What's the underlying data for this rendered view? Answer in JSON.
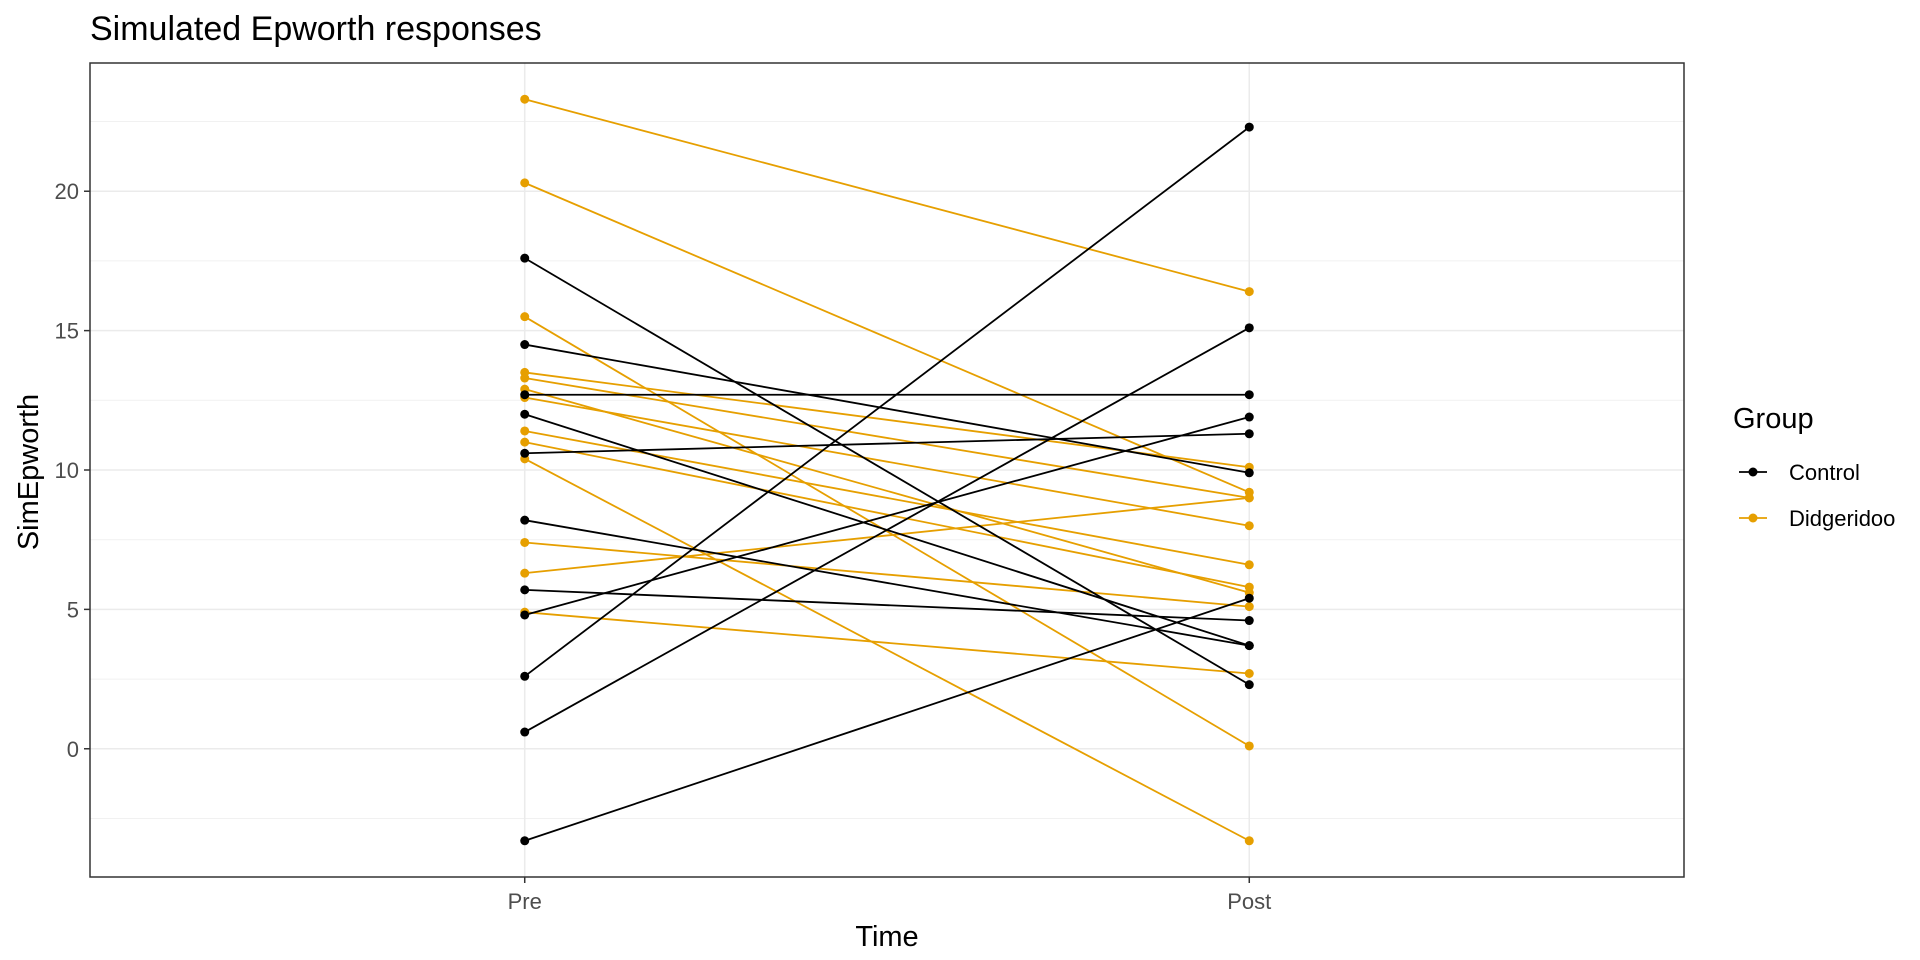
{
  "chart_data": {
    "type": "line",
    "title": "Simulated Epworth responses",
    "xlabel": "Time",
    "ylabel": "SimEpworth",
    "categories": [
      "Pre",
      "Post"
    ],
    "ylim": [
      -4.6,
      24.6
    ],
    "y_ticks": [
      0,
      5,
      10,
      15,
      20
    ],
    "y_tick_labels": [
      "0",
      "5",
      "10",
      "15",
      "20"
    ],
    "grid": true,
    "legend": {
      "title": "Group",
      "position": "right",
      "entries": [
        {
          "label": "Control",
          "color": "#000000"
        },
        {
          "label": "Didgeridoo",
          "color": "#E69F00"
        }
      ]
    },
    "series": [
      {
        "group": "Control",
        "values": [
          17.6,
          2.3
        ]
      },
      {
        "group": "Control",
        "values": [
          14.5,
          9.9
        ]
      },
      {
        "group": "Control",
        "values": [
          12.7,
          12.7
        ]
      },
      {
        "group": "Control",
        "values": [
          12.0,
          3.7
        ]
      },
      {
        "group": "Control",
        "values": [
          10.6,
          11.3
        ]
      },
      {
        "group": "Control",
        "values": [
          8.2,
          3.7
        ]
      },
      {
        "group": "Control",
        "values": [
          5.7,
          4.6
        ]
      },
      {
        "group": "Control",
        "values": [
          4.8,
          11.9
        ]
      },
      {
        "group": "Control",
        "values": [
          2.6,
          22.3
        ]
      },
      {
        "group": "Control",
        "values": [
          0.6,
          15.1
        ]
      },
      {
        "group": "Control",
        "values": [
          -3.3,
          5.4
        ]
      },
      {
        "group": "Didgeridoo",
        "values": [
          23.3,
          16.4
        ]
      },
      {
        "group": "Didgeridoo",
        "values": [
          20.3,
          9.2
        ]
      },
      {
        "group": "Didgeridoo",
        "values": [
          15.5,
          0.1
        ]
      },
      {
        "group": "Didgeridoo",
        "values": [
          13.5,
          10.1
        ]
      },
      {
        "group": "Didgeridoo",
        "values": [
          13.3,
          9.0
        ]
      },
      {
        "group": "Didgeridoo",
        "values": [
          12.9,
          5.6
        ]
      },
      {
        "group": "Didgeridoo",
        "values": [
          12.6,
          8.0
        ]
      },
      {
        "group": "Didgeridoo",
        "values": [
          11.4,
          6.6
        ]
      },
      {
        "group": "Didgeridoo",
        "values": [
          11.0,
          5.8
        ]
      },
      {
        "group": "Didgeridoo",
        "values": [
          10.4,
          -3.3
        ]
      },
      {
        "group": "Didgeridoo",
        "values": [
          7.4,
          5.1
        ]
      },
      {
        "group": "Didgeridoo",
        "values": [
          6.3,
          9.0
        ]
      },
      {
        "group": "Didgeridoo",
        "values": [
          4.9,
          2.7
        ]
      }
    ]
  }
}
